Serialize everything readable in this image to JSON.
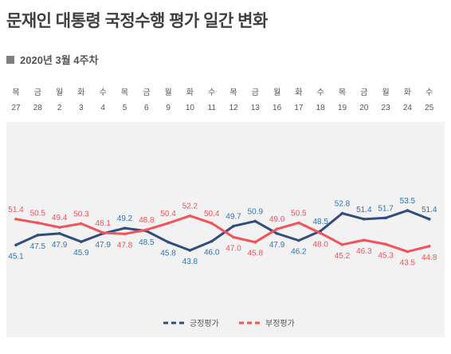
{
  "title": "문재인 대통령 국정수행 평가 일간 변화",
  "subtitle": "2020년 3월 4주차",
  "colors": {
    "positive": "#2f4e7f",
    "positive_label": "#2e75b6",
    "negative": "#f4525a",
    "background_panel": "#f2f2f2"
  },
  "chart_data": {
    "type": "line",
    "days": [
      "목",
      "금",
      "월",
      "화",
      "수",
      "목",
      "금",
      "월",
      "화",
      "수",
      "목",
      "금",
      "월",
      "화",
      "수",
      "목",
      "금",
      "월",
      "화",
      "수"
    ],
    "categories": [
      "27",
      "28",
      "2",
      "3",
      "4",
      "5",
      "6",
      "9",
      "10",
      "11",
      "12",
      "13",
      "16",
      "17",
      "18",
      "19",
      "20",
      "23",
      "24",
      "25"
    ],
    "series": [
      {
        "name": "긍정평가",
        "values": [
          45.1,
          47.5,
          47.9,
          45.9,
          47.9,
          49.2,
          48.5,
          45.8,
          43.8,
          46.0,
          49.7,
          50.9,
          47.9,
          46.2,
          48.5,
          52.8,
          51.4,
          51.7,
          53.5,
          51.4
        ],
        "label_side": [
          "below",
          "below",
          "below",
          "below",
          "below",
          "above",
          "below",
          "below",
          "below",
          "below",
          "above",
          "above",
          "below",
          "below",
          "above",
          "above",
          "above",
          "above",
          "above",
          "above"
        ]
      },
      {
        "name": "부정평가",
        "values": [
          51.4,
          50.5,
          49.4,
          50.3,
          48.1,
          47.8,
          48.8,
          50.4,
          52.2,
          50.4,
          47.0,
          45.8,
          49.0,
          50.5,
          48.0,
          45.2,
          46.3,
          45.3,
          43.5,
          44.8
        ],
        "label_side": [
          "above",
          "above",
          "above",
          "above",
          "above",
          "below",
          "above",
          "above",
          "above",
          "above",
          "below",
          "below",
          "above",
          "above",
          "below",
          "below",
          "below",
          "below",
          "below",
          "below"
        ]
      }
    ],
    "grid": false,
    "legend_position": "bottom-center"
  }
}
